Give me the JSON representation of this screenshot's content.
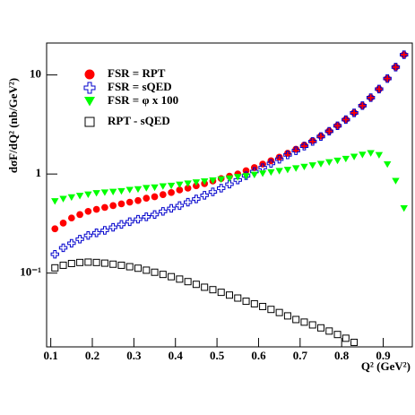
{
  "chart_data": {
    "type": "scatter",
    "x_label": "Q² (GeV²)",
    "y_label": "dσF/dQ² (nb/GeV²)",
    "x": [
      0.11,
      0.13,
      0.15,
      0.17,
      0.19,
      0.21,
      0.23,
      0.25,
      0.27,
      0.29,
      0.31,
      0.33,
      0.35,
      0.37,
      0.39,
      0.41,
      0.43,
      0.45,
      0.47,
      0.49,
      0.51,
      0.53,
      0.55,
      0.57,
      0.59,
      0.61,
      0.63,
      0.65,
      0.67,
      0.69,
      0.71,
      0.73,
      0.75,
      0.77,
      0.79,
      0.81,
      0.83,
      0.85,
      0.87,
      0.89,
      0.91,
      0.93,
      0.95
    ],
    "series": [
      {
        "name": "FSR = RPT",
        "color": "#ff0000",
        "marker": "circle",
        "values": [
          0.28,
          0.32,
          0.36,
          0.39,
          0.42,
          0.44,
          0.46,
          0.48,
          0.5,
          0.52,
          0.54,
          0.57,
          0.59,
          0.62,
          0.65,
          0.69,
          0.72,
          0.76,
          0.8,
          0.85,
          0.9,
          0.95,
          1.0,
          1.08,
          1.16,
          1.26,
          1.36,
          1.48,
          1.62,
          1.78,
          1.96,
          2.17,
          2.42,
          2.72,
          3.08,
          3.55,
          4.15,
          4.9,
          5.9,
          7.2,
          9.2,
          12,
          16
        ]
      },
      {
        "name": "FSR = sQED",
        "color": "#0000cc",
        "marker": "cross",
        "values": [
          0.155,
          0.18,
          0.2,
          0.22,
          0.24,
          0.255,
          0.27,
          0.29,
          0.31,
          0.33,
          0.35,
          0.37,
          0.39,
          0.42,
          0.45,
          0.48,
          0.52,
          0.56,
          0.61,
          0.66,
          0.72,
          0.79,
          0.87,
          0.96,
          1.06,
          1.16,
          1.28,
          1.41,
          1.56,
          1.72,
          1.91,
          2.13,
          2.39,
          2.7,
          3.07,
          3.54,
          4.14,
          4.9,
          5.9,
          7.2,
          9.2,
          12,
          16
        ]
      },
      {
        "name": "FSR = φ x 100",
        "color": "#00ff00",
        "marker": "triangle-down",
        "values": [
          0.53,
          0.56,
          0.58,
          0.6,
          0.62,
          0.64,
          0.65,
          0.66,
          0.67,
          0.69,
          0.7,
          0.72,
          0.73,
          0.75,
          0.76,
          0.78,
          0.8,
          0.82,
          0.84,
          0.86,
          0.88,
          0.9,
          0.93,
          0.95,
          0.98,
          1.01,
          1.04,
          1.07,
          1.1,
          1.14,
          1.18,
          1.22,
          1.26,
          1.31,
          1.36,
          1.42,
          1.49,
          1.56,
          1.62,
          1.55,
          1.25,
          0.85,
          0.45
        ]
      },
      {
        "name": "RPT - sQED",
        "color": "#000000",
        "marker": "square",
        "values": [
          0.113,
          0.12,
          0.125,
          0.128,
          0.129,
          0.128,
          0.126,
          0.123,
          0.12,
          0.116,
          0.112,
          0.107,
          0.102,
          0.097,
          0.092,
          0.087,
          0.082,
          0.077,
          0.072,
          0.068,
          0.064,
          0.06,
          0.056,
          0.052,
          0.049,
          0.046,
          0.043,
          0.04,
          0.037,
          0.034,
          0.032,
          0.03,
          0.028,
          0.026,
          0.024,
          0.022,
          0.02,
          null,
          null,
          null,
          null,
          null,
          null
        ]
      }
    ],
    "xlim": [
      0.09,
      0.97
    ],
    "xticks": [
      0.1,
      0.2,
      0.3,
      0.4,
      0.5,
      0.6,
      0.7,
      0.8,
      0.9
    ],
    "ylim": [
      0.018,
      21
    ],
    "yticks": [
      {
        "value": 0.1,
        "label": "10⁻¹"
      },
      1,
      10
    ],
    "y_log": true,
    "legend": "upper left"
  }
}
